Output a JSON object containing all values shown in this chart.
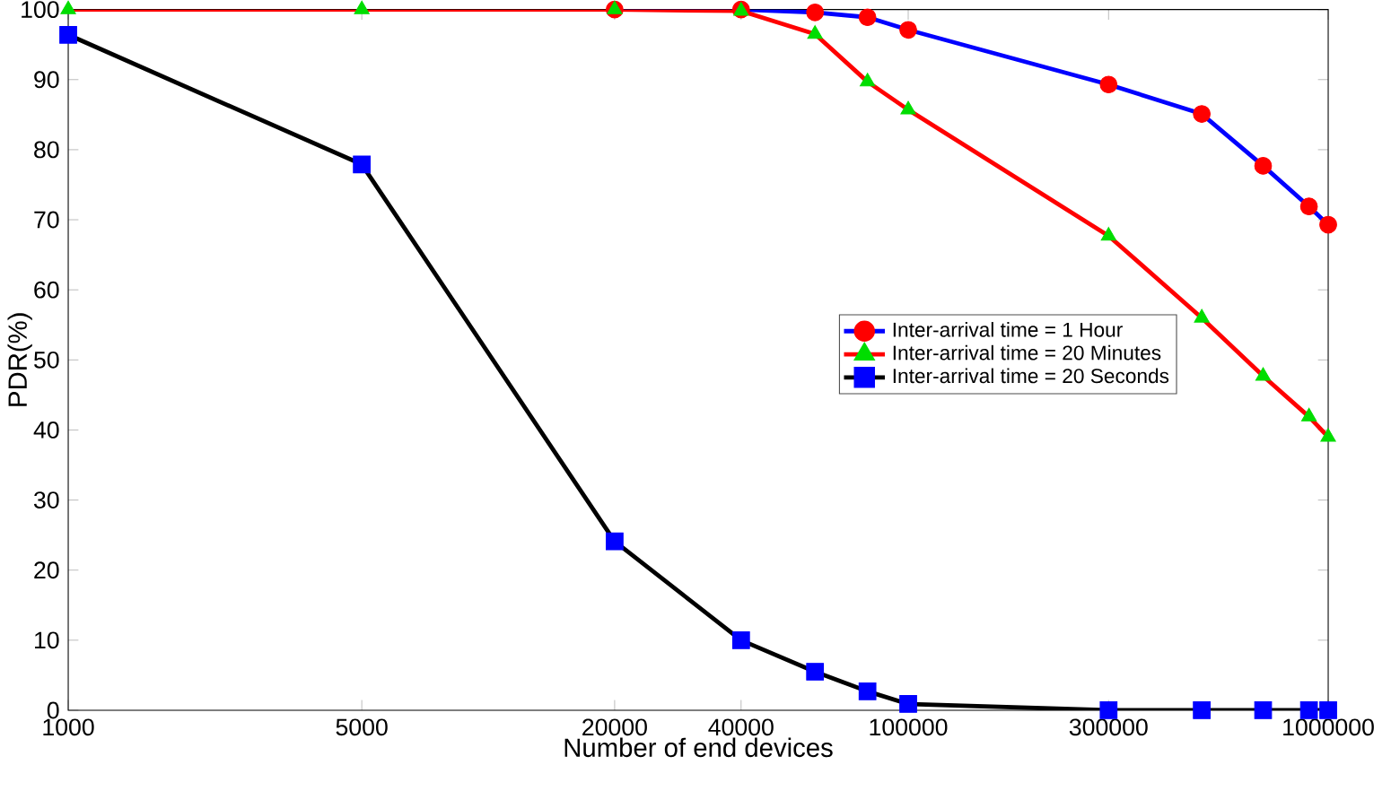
{
  "chart_data": {
    "type": "line",
    "xlabel": "Number of end devices",
    "ylabel": "PDR(%)",
    "log": "x",
    "xlim": [
      1000,
      1000000
    ],
    "ylim": [
      0,
      100
    ],
    "xticks": [
      1000,
      5000,
      20000,
      40000,
      100000,
      300000,
      1000000
    ],
    "yticks": [
      0,
      10,
      20,
      30,
      40,
      50,
      60,
      70,
      80,
      90,
      100
    ],
    "grid": false,
    "legend": "right",
    "series": [
      {
        "name": "Inter-arrival time = 1 Hour",
        "color": "#0000ff",
        "marker": "circle",
        "colors": [
          "#ff0000",
          "#ff0000",
          "#ff0000",
          "#ff0000",
          "#ff0000",
          "#ff0000",
          "#ff0000",
          "#ff0000",
          "#ff0000",
          "#ff0000"
        ],
        "x": [
          20000,
          40000,
          60000,
          80000,
          100000,
          300000,
          500000,
          700000,
          900000,
          1000000
        ],
        "values": [
          100,
          100,
          99.6,
          98.9,
          97.1,
          89.3,
          85.1,
          77.7,
          71.9,
          69.3
        ]
      },
      {
        "name": "Inter-arrival time = 20 Minutes",
        "color": "#ff0000",
        "marker": "triangle",
        "colors": [
          "#00dd00",
          "#00dd00",
          "#00dd00",
          "#00dd00",
          "#00dd00",
          "#00dd00",
          "#00dd00",
          "#00dd00",
          "#00dd00",
          "#00dd00",
          "#00dd00",
          "#00dd00"
        ],
        "x": [
          1000,
          5000,
          20000,
          40000,
          60000,
          80000,
          100000,
          300000,
          500000,
          700000,
          900000,
          1000000
        ],
        "values": [
          100,
          100,
          100,
          99.8,
          96.5,
          89.7,
          85.7,
          67.7,
          56,
          47.7,
          41.9,
          39
        ]
      },
      {
        "name": "Inter-arrival time = 20 Seconds",
        "color": "#000000",
        "marker": "square",
        "colors": [
          "#0000ff",
          "#0000ff",
          "#0000ff",
          "#0000ff",
          "#0000ff",
          "#0000ff",
          "#0000ff",
          "#0000ff",
          "#0000ff",
          "#0000ff",
          "#0000ff",
          "#0000ff"
        ],
        "x": [
          1000,
          5000,
          20000,
          40000,
          60000,
          80000,
          100000,
          300000,
          500000,
          700000,
          900000,
          1000000
        ],
        "values": [
          96.4,
          77.9,
          24.1,
          10,
          5.5,
          2.7,
          0.9,
          0,
          0,
          0,
          0,
          0
        ]
      }
    ]
  }
}
